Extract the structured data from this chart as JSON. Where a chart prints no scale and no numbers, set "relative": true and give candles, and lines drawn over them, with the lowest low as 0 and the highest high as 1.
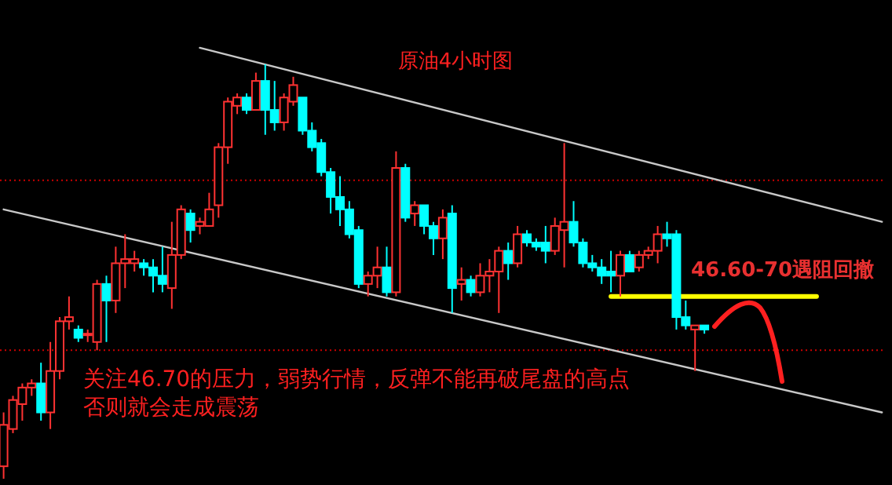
{
  "chart_data": {
    "type": "candlestick",
    "relative": true,
    "title": "原油4小时图",
    "categories": [
      null,
      null,
      null,
      null,
      null,
      null,
      null,
      null,
      null,
      null,
      null,
      null,
      null,
      null,
      null,
      null,
      null,
      null,
      null,
      null,
      null,
      null,
      null,
      null,
      null,
      null,
      null,
      null,
      null,
      null,
      null,
      null,
      null,
      null,
      null,
      null,
      null,
      null,
      null,
      null,
      null,
      null,
      null,
      null,
      null,
      null,
      null,
      null,
      null,
      null,
      null,
      null,
      null,
      null,
      null,
      null,
      null,
      null,
      null,
      null,
      null,
      null,
      null,
      null,
      null,
      null,
      null,
      null,
      null,
      null,
      null,
      null,
      null,
      null,
      null,
      null,
      null,
      null,
      null,
      null,
      null,
      null,
      null,
      null,
      null,
      null,
      null,
      null,
      null,
      null,
      null,
      null,
      null,
      null,
      null
    ],
    "ohlc": [
      [
        0.03,
        0.16,
        0,
        0.13
      ],
      [
        0.12,
        0.2,
        0.11,
        0.19
      ],
      [
        0.18,
        0.23,
        0.14,
        0.22
      ],
      [
        0.22,
        0.24,
        0.2,
        0.23
      ],
      [
        0.23,
        0.28,
        0.14,
        0.16
      ],
      [
        0.16,
        0.33,
        0.12,
        0.26
      ],
      [
        0.26,
        0.39,
        0.24,
        0.38
      ],
      [
        0.38,
        0.44,
        0.36,
        0.39
      ],
      [
        0.36,
        0.37,
        0.33,
        0.34
      ],
      [
        0.35,
        0.36,
        0.33,
        0.35
      ],
      [
        0.33,
        0.48,
        0.31,
        0.47
      ],
      [
        0.47,
        0.49,
        0.33,
        0.43
      ],
      [
        0.43,
        0.56,
        0.4,
        0.52
      ],
      [
        0.52,
        0.59,
        0.46,
        0.53
      ],
      [
        0.52,
        0.55,
        0.5,
        0.53
      ],
      [
        0.52,
        0.53,
        0.49,
        0.51
      ],
      [
        0.51,
        0.53,
        0.45,
        0.49
      ],
      [
        0.49,
        0.56,
        0.45,
        0.47
      ],
      [
        0.46,
        0.62,
        0.41,
        0.54
      ],
      [
        0.54,
        0.66,
        0.53,
        0.65
      ],
      [
        0.64,
        0.65,
        0.57,
        0.6
      ],
      [
        0.61,
        0.63,
        0.59,
        0.62
      ],
      [
        0.61,
        0.69,
        0.61,
        0.65
      ],
      [
        0.66,
        0.81,
        0.63,
        0.8
      ],
      [
        0.8,
        0.92,
        0.76,
        0.91
      ],
      [
        0.9,
        0.93,
        0.88,
        0.92
      ],
      [
        0.92,
        0.93,
        0.88,
        0.89
      ],
      [
        0.89,
        0.98,
        0.89,
        0.96
      ],
      [
        0.96,
        1,
        0.83,
        0.89
      ],
      [
        0.89,
        0.96,
        0.84,
        0.86
      ],
      [
        0.86,
        0.93,
        0.84,
        0.92
      ],
      [
        0.91,
        0.97,
        0.9,
        0.95
      ],
      [
        0.92,
        0.92,
        0.83,
        0.84
      ],
      [
        0.84,
        0.86,
        0.79,
        0.8
      ],
      [
        0.81,
        0.82,
        0.73,
        0.74
      ],
      [
        0.74,
        0.75,
        0.64,
        0.68
      ],
      [
        0.68,
        0.73,
        0.61,
        0.65
      ],
      [
        0.65,
        0.67,
        0.58,
        0.59
      ],
      [
        0.6,
        0.61,
        0.46,
        0.47
      ],
      [
        0.47,
        0.5,
        0.44,
        0.49
      ],
      [
        0.49,
        0.56,
        0.46,
        0.51
      ],
      [
        0.51,
        0.56,
        0.44,
        0.45
      ],
      [
        0.45,
        0.79,
        0.44,
        0.75
      ],
      [
        0.75,
        0.76,
        0.62,
        0.63
      ],
      [
        0.64,
        0.67,
        0.61,
        0.66
      ],
      [
        0.66,
        0.66,
        0.59,
        0.61
      ],
      [
        0.61,
        0.62,
        0.54,
        0.58
      ],
      [
        0.58,
        0.65,
        0.53,
        0.63
      ],
      [
        0.64,
        0.66,
        0.4,
        0.46
      ],
      [
        0.47,
        0.51,
        0.43,
        0.48
      ],
      [
        0.48,
        0.49,
        0.44,
        0.45
      ],
      [
        0.45,
        0.52,
        0.44,
        0.49
      ],
      [
        0.49,
        0.53,
        0.45,
        0.5
      ],
      [
        0.5,
        0.56,
        0.4,
        0.55
      ],
      [
        0.55,
        0.57,
        0.48,
        0.52
      ],
      [
        0.52,
        0.61,
        0.51,
        0.59
      ],
      [
        0.59,
        0.6,
        0.56,
        0.57
      ],
      [
        0.57,
        0.58,
        0.55,
        0.56
      ],
      [
        0.57,
        0.61,
        0.52,
        0.55
      ],
      [
        0.55,
        0.63,
        0.54,
        0.61
      ],
      [
        0.6,
        0.81,
        0.51,
        0.62
      ],
      [
        0.62,
        0.67,
        0.56,
        0.57
      ],
      [
        0.57,
        0.58,
        0.51,
        0.52
      ],
      [
        0.52,
        0.54,
        0.5,
        0.51
      ],
      [
        0.51,
        0.53,
        0.47,
        0.49
      ],
      [
        0.5,
        0.55,
        0.45,
        0.49
      ],
      [
        0.49,
        0.55,
        0.44,
        0.54
      ],
      [
        0.54,
        0.55,
        0.5,
        0.5
      ],
      [
        0.51,
        0.55,
        0.5,
        0.54
      ],
      [
        0.54,
        0.56,
        0.53,
        0.55
      ],
      [
        0.55,
        0.61,
        0.52,
        0.59
      ],
      [
        0.59,
        0.62,
        0.56,
        0.58
      ],
      [
        0.59,
        0.6,
        0.36,
        0.39
      ],
      [
        0.39,
        0.43,
        0.36,
        0.37
      ],
      [
        0.36,
        0.37,
        0.26,
        0.37
      ],
      [
        0.37,
        0.37,
        0.35,
        0.36
      ],
      null,
      null,
      null,
      null,
      null,
      null,
      null,
      null,
      null,
      null,
      null,
      null,
      null,
      null,
      null,
      null,
      null,
      null,
      null
    ],
    "series": [
      {
        "type": "line",
        "color": "#c8c8c8",
        "values": [
          null,
          null,
          null,
          null,
          null,
          null,
          null,
          null,
          null,
          null,
          null,
          null,
          null,
          null,
          null,
          null,
          null,
          null,
          null,
          null,
          null,
          1.04,
          null,
          null,
          null,
          null,
          null,
          null,
          null,
          null,
          null,
          null,
          null,
          null,
          null,
          null,
          null,
          null,
          null,
          null,
          null,
          null,
          null,
          null,
          null,
          null,
          null,
          null,
          null,
          null,
          null,
          null,
          null,
          null,
          null,
          null,
          null,
          null,
          null,
          null,
          null,
          null,
          null,
          null,
          null,
          null,
          null,
          null,
          null,
          null,
          null,
          null,
          null,
          null,
          null,
          null,
          null,
          null,
          null,
          null,
          null,
          null,
          null,
          null,
          null,
          null,
          null,
          null,
          null,
          null,
          null,
          null,
          null,
          null,
          0.62
        ]
      },
      {
        "type": "line",
        "color": "#c8c8c8",
        "values": [
          0.65,
          null,
          null,
          null,
          null,
          null,
          null,
          null,
          null,
          null,
          null,
          null,
          null,
          null,
          null,
          null,
          null,
          null,
          null,
          null,
          null,
          null,
          null,
          null,
          null,
          null,
          null,
          null,
          null,
          null,
          null,
          null,
          null,
          null,
          null,
          null,
          null,
          null,
          null,
          null,
          null,
          null,
          null,
          null,
          null,
          null,
          null,
          null,
          null,
          null,
          null,
          null,
          null,
          null,
          null,
          null,
          null,
          null,
          null,
          null,
          null,
          null,
          null,
          null,
          null,
          null,
          null,
          null,
          null,
          null,
          null,
          null,
          null,
          null,
          null,
          null,
          null,
          null,
          null,
          null,
          null,
          null,
          null,
          null,
          null,
          null,
          null,
          null,
          null,
          null,
          null,
          null,
          null,
          null,
          0.16
        ]
      },
      {
        "type": "line",
        "color": "#ffff00",
        "values": [
          null,
          null,
          null,
          null,
          null,
          null,
          null,
          null,
          null,
          null,
          null,
          null,
          null,
          null,
          null,
          null,
          null,
          null,
          null,
          null,
          null,
          null,
          null,
          null,
          null,
          null,
          null,
          null,
          null,
          null,
          null,
          null,
          null,
          null,
          null,
          null,
          null,
          null,
          null,
          null,
          null,
          null,
          null,
          null,
          null,
          null,
          null,
          null,
          null,
          null,
          null,
          null,
          null,
          null,
          null,
          null,
          null,
          null,
          null,
          null,
          null,
          null,
          null,
          null,
          null,
          0.44,
          null,
          null,
          null,
          null,
          null,
          null,
          null,
          null,
          null,
          null,
          null,
          null,
          null,
          null,
          null,
          null,
          null,
          null,
          null,
          null,
          null,
          0.44,
          null,
          null,
          null,
          null,
          null,
          null,
          null
        ]
      }
    ],
    "ref_lines": [
      {
        "axis": "y",
        "value": 0.72,
        "color": "#cc0000",
        "line_style": "dotted"
      },
      {
        "axis": "y",
        "value": 0.31,
        "color": "#cc0000",
        "line_style": "dotted"
      }
    ],
    "annotations": [
      "46.60-70遇阻回撤",
      "关注46.70的压力，弱势行情，反弹不能再破尾盘的高点",
      "否则就会走成震荡"
    ]
  }
}
